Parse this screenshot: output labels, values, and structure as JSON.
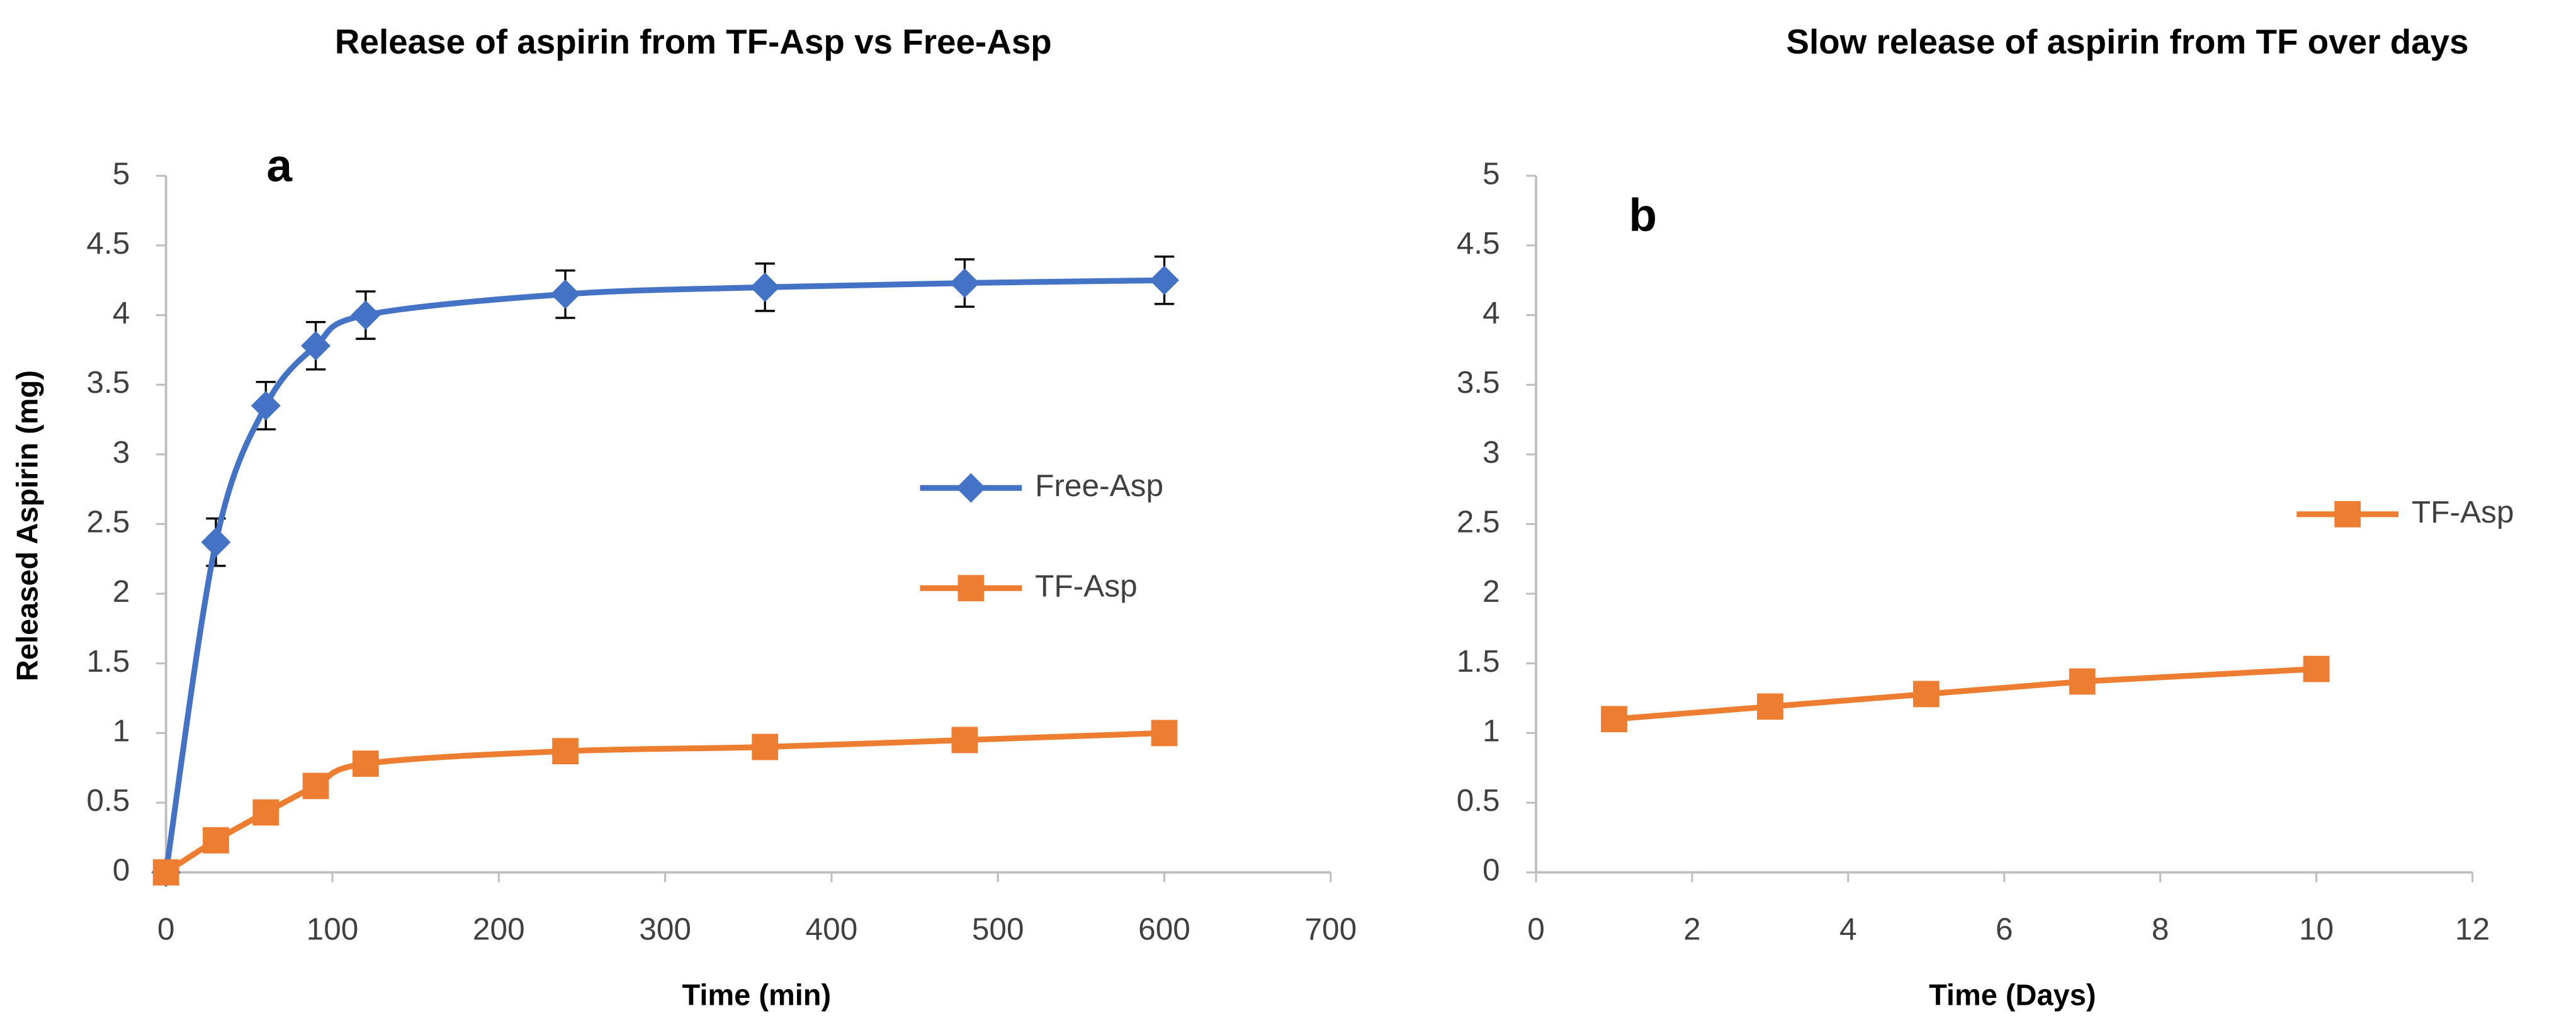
{
  "chart_data": [
    {
      "type": "line",
      "title": "Release of aspirin from TF-Asp vs Free-Asp",
      "annotation": "a",
      "x_label": "Time (min)",
      "y_label": "Released Aspirin (mg)",
      "xlim": [
        0,
        700
      ],
      "xticks": [
        0,
        100,
        200,
        300,
        400,
        500,
        600,
        700
      ],
      "ylim": [
        0,
        5
      ],
      "yticks": [
        0,
        0.5,
        1,
        1.5,
        2,
        2.5,
        3,
        3.5,
        4,
        4.5,
        5
      ],
      "smooth": true,
      "grid": false,
      "legend_position": "right",
      "series": [
        {
          "name": "Free-Asp",
          "color": "#4472c4",
          "marker": "diamond",
          "x": [
            0,
            30,
            60,
            90,
            120,
            240,
            360,
            480,
            600
          ],
          "values": [
            0,
            2.37,
            3.35,
            3.78,
            4.0,
            4.15,
            4.2,
            4.23,
            4.25
          ],
          "errors": [
            0,
            0.17,
            0.17,
            0.17,
            0.17,
            0.17,
            0.17,
            0.17,
            0.17
          ]
        },
        {
          "name": "TF-Asp",
          "color": "#ed7d31",
          "marker": "square",
          "x": [
            0,
            30,
            60,
            90,
            120,
            240,
            360,
            480,
            600
          ],
          "values": [
            0,
            0.23,
            0.43,
            0.62,
            0.78,
            0.87,
            0.9,
            0.95,
            1.0
          ]
        }
      ]
    },
    {
      "type": "line",
      "title": "Slow release of aspirin from TF over days",
      "annotation": "b",
      "x_label": "Time (Days)",
      "xlim": [
        0,
        12
      ],
      "xticks": [
        0,
        2,
        4,
        6,
        8,
        10,
        12
      ],
      "ylim": [
        0,
        5
      ],
      "yticks": [
        0,
        0.5,
        1,
        1.5,
        2,
        2.5,
        3,
        3.5,
        4,
        4.5,
        5
      ],
      "smooth": false,
      "grid": false,
      "legend_position": "right",
      "series": [
        {
          "name": "TF-Asp",
          "color": "#ed7d31",
          "marker": "square",
          "x": [
            1,
            3,
            5,
            7,
            10
          ],
          "values": [
            1.1,
            1.19,
            1.28,
            1.37,
            1.46
          ]
        }
      ]
    }
  ]
}
